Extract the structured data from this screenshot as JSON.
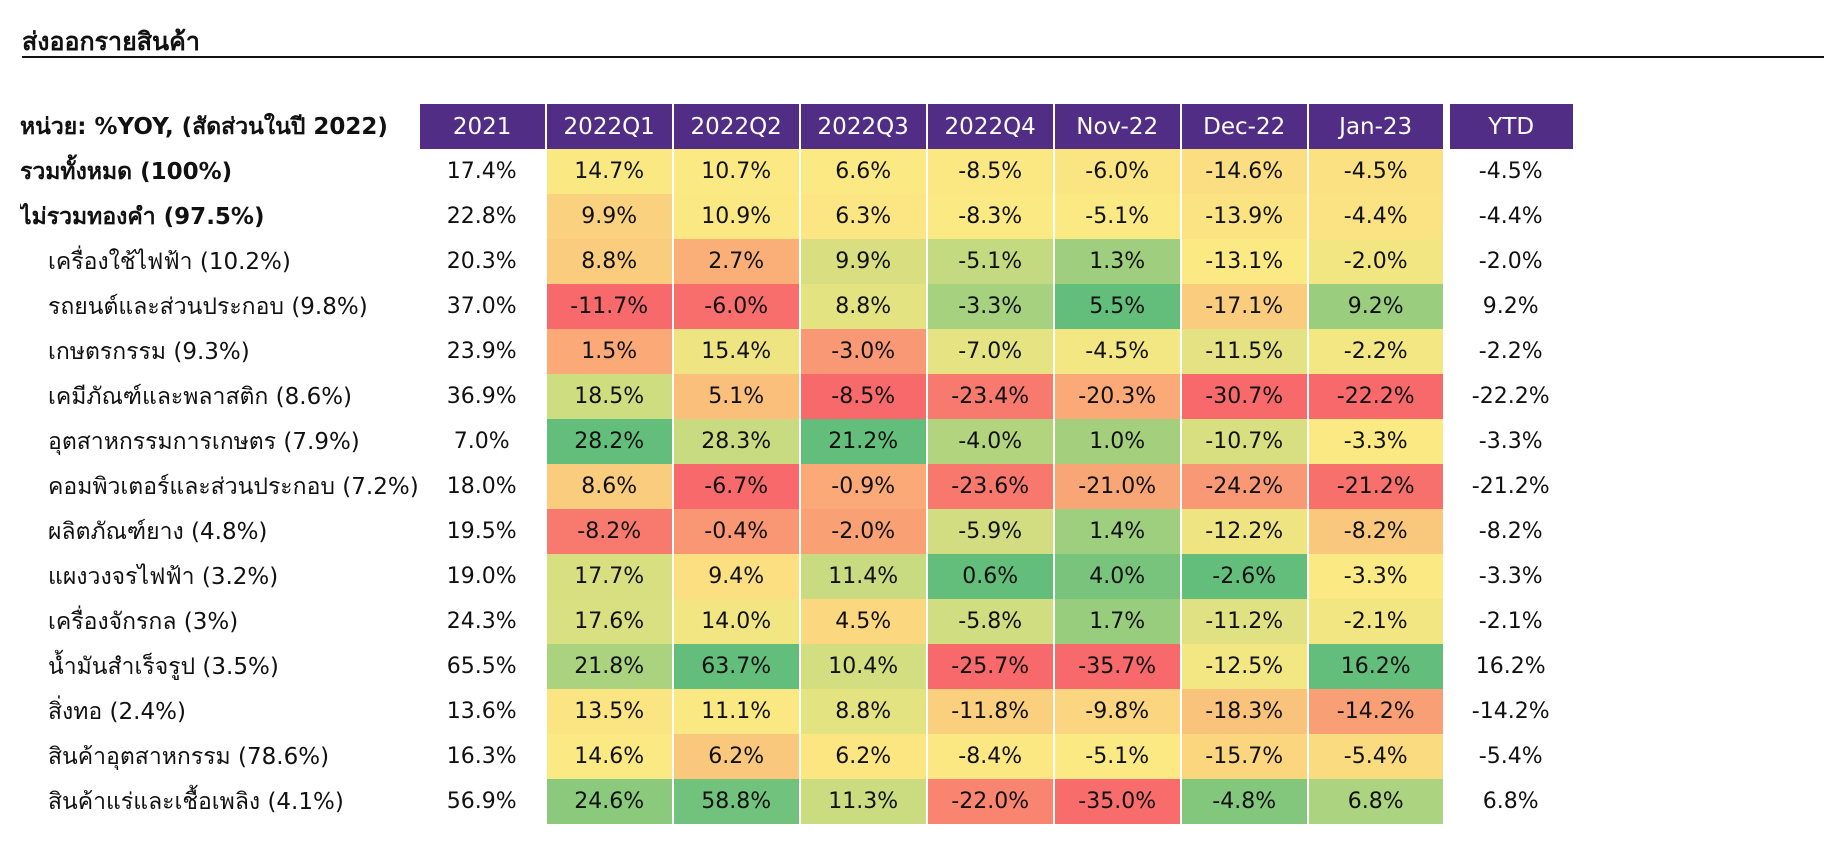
{
  "title": "ส่งออกรายสินค้า",
  "table": {
    "unit_label": "หน่วย: %YOY, (สัดส่วนในปี 2022)",
    "columns": [
      "2021",
      "2022Q1",
      "2022Q2",
      "2022Q3",
      "2022Q4",
      "Nov-22",
      "Dec-22",
      "Jan-23",
      "YTD"
    ],
    "rows": [
      {
        "label": "รวมทั้งหมด (100%)",
        "bold": true,
        "values": [
          "17.4%",
          "14.7%",
          "10.7%",
          "6.6%",
          "-8.5%",
          "-6.0%",
          "-14.6%",
          "-4.5%",
          "-4.5%"
        ]
      },
      {
        "label": "ไม่รวมทองคำ (97.5%)",
        "bold": true,
        "values": [
          "22.8%",
          "9.9%",
          "10.9%",
          "6.3%",
          "-8.3%",
          "-5.1%",
          "-13.9%",
          "-4.4%",
          "-4.4%"
        ]
      },
      {
        "label": "เครื่องใช้ไฟฟ้า (10.2%)",
        "bold": false,
        "values": [
          "20.3%",
          "8.8%",
          "2.7%",
          "9.9%",
          "-5.1%",
          "1.3%",
          "-13.1%",
          "-2.0%",
          "-2.0%"
        ]
      },
      {
        "label": "รถยนต์และส่วนประกอบ (9.8%)",
        "bold": false,
        "values": [
          "37.0%",
          "-11.7%",
          "-6.0%",
          "8.8%",
          "-3.3%",
          "5.5%",
          "-17.1%",
          "9.2%",
          "9.2%"
        ]
      },
      {
        "label": "เกษตรกรรม (9.3%)",
        "bold": false,
        "values": [
          "23.9%",
          "1.5%",
          "15.4%",
          "-3.0%",
          "-7.0%",
          "-4.5%",
          "-11.5%",
          "-2.2%",
          "-2.2%"
        ]
      },
      {
        "label": "เคมีภัณฑ์และพลาสติก (8.6%)",
        "bold": false,
        "values": [
          "36.9%",
          "18.5%",
          "5.1%",
          "-8.5%",
          "-23.4%",
          "-20.3%",
          "-30.7%",
          "-22.2%",
          "-22.2%"
        ]
      },
      {
        "label": "อุตสาหกรรมการเกษตร (7.9%)",
        "bold": false,
        "values": [
          "7.0%",
          "28.2%",
          "28.3%",
          "21.2%",
          "-4.0%",
          "1.0%",
          "-10.7%",
          "-3.3%",
          "-3.3%"
        ]
      },
      {
        "label": "คอมพิวเตอร์และส่วนประกอบ (7.2%)",
        "bold": false,
        "values": [
          "18.0%",
          "8.6%",
          "-6.7%",
          "-0.9%",
          "-23.6%",
          "-21.0%",
          "-24.2%",
          "-21.2%",
          "-21.2%"
        ]
      },
      {
        "label": "ผลิตภัณฑ์ยาง (4.8%)",
        "bold": false,
        "values": [
          "19.5%",
          "-8.2%",
          "-0.4%",
          "-2.0%",
          "-5.9%",
          "1.4%",
          "-12.2%",
          "-8.2%",
          "-8.2%"
        ]
      },
      {
        "label": "แผงวงจรไฟฟ้า (3.2%)",
        "bold": false,
        "values": [
          "19.0%",
          "17.7%",
          "9.4%",
          "11.4%",
          "0.6%",
          "4.0%",
          "-2.6%",
          "-3.3%",
          "-3.3%"
        ]
      },
      {
        "label": "เครื่องจักรกล (3%)",
        "bold": false,
        "values": [
          "24.3%",
          "17.6%",
          "14.0%",
          "4.5%",
          "-5.8%",
          "1.7%",
          "-11.2%",
          "-2.1%",
          "-2.1%"
        ]
      },
      {
        "label": "น้ำมันสำเร็จรูป (3.5%)",
        "bold": false,
        "values": [
          "65.5%",
          "21.8%",
          "63.7%",
          "10.4%",
          "-25.7%",
          "-35.7%",
          "-12.5%",
          "16.2%",
          "16.2%"
        ]
      },
      {
        "label": "สิ่งทอ (2.4%)",
        "bold": false,
        "values": [
          "13.6%",
          "13.5%",
          "11.1%",
          "8.8%",
          "-11.8%",
          "-9.8%",
          "-18.3%",
          "-14.2%",
          "-14.2%"
        ]
      },
      {
        "label": "สินค้าอุตสาหกรรม (78.6%)",
        "bold": false,
        "values": [
          "16.3%",
          "14.6%",
          "6.2%",
          "6.2%",
          "-8.4%",
          "-5.1%",
          "-15.7%",
          "-5.4%",
          "-5.4%"
        ]
      },
      {
        "label": "สินค้าแร่และเชื้อเพลิง (4.1%)",
        "bold": false,
        "values": [
          "56.9%",
          "24.6%",
          "58.8%",
          "11.3%",
          "-22.0%",
          "-35.0%",
          "-4.8%",
          "6.8%",
          "6.8%"
        ]
      }
    ],
    "colors": {
      "header_bg": "#512d86",
      "scale_low": "#f8696b",
      "scale_mid": "#fbe983",
      "scale_high": "#63be7b"
    }
  }
}
